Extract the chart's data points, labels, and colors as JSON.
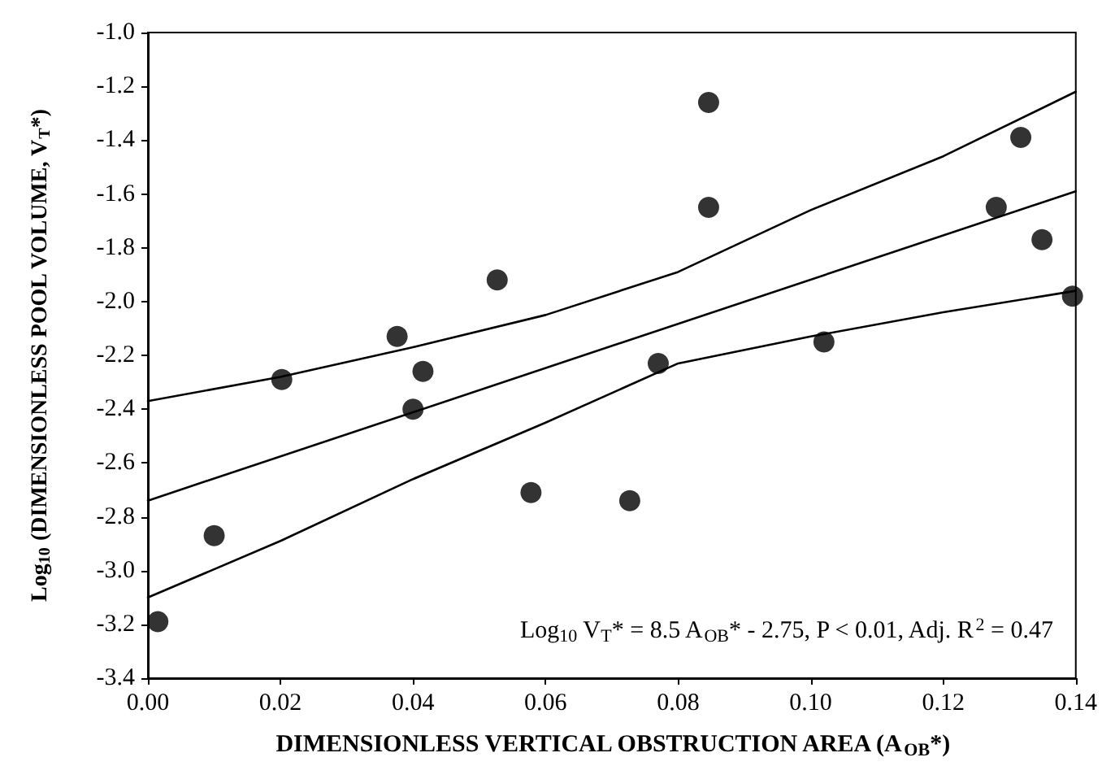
{
  "chart_data": {
    "type": "scatter",
    "xlabel": "DIMENSIONLESS VERTICAL OBSTRUCTION AREA (A$_{OB}$*)",
    "ylabel": "Log$_{10}$ (DIMENSIONLESS POOL VOLUME, V$_{T}$*)",
    "annotations": [
      "Log$_{10}$ V$_{T}$* = 8.5 A$_{OB}$* - 2.75, P < 0.01, Adj. R$^{2}$ = 0.47"
    ],
    "xlim": [
      0,
      0.14
    ],
    "xticks": [
      {
        "value": 0,
        "label": "0.00"
      },
      {
        "value": 0.02,
        "label": "0.02"
      },
      {
        "value": 0.04,
        "label": "0.04"
      },
      {
        "value": 0.06,
        "label": "0.06"
      },
      {
        "value": 0.08,
        "label": "0.08"
      },
      {
        "value": 0.1,
        "label": "0.10"
      },
      {
        "value": 0.12,
        "label": "0.12"
      },
      {
        "value": 0.14,
        "label": "0.14"
      }
    ],
    "ylim": [
      -3.4,
      -1.0
    ],
    "yticks": [
      {
        "value": -3.4,
        "label": "-3.4"
      },
      {
        "value": -3.2,
        "label": "-3.2"
      },
      {
        "value": -3.0,
        "label": "-3.0"
      },
      {
        "value": -2.8,
        "label": "-2.8"
      },
      {
        "value": -2.6,
        "label": "-2.6"
      },
      {
        "value": -2.4,
        "label": "-2.4"
      },
      {
        "value": -2.2,
        "label": "-2.2"
      },
      {
        "value": -2.0,
        "label": "-2.0"
      },
      {
        "value": -1.8,
        "label": "-1.8"
      },
      {
        "value": -1.6,
        "label": "-1.6"
      },
      {
        "value": -1.4,
        "label": "-1.4"
      },
      {
        "value": -1.2,
        "label": "-1.2"
      },
      {
        "value": -1.0,
        "label": "-1.0"
      }
    ],
    "grid": false,
    "series": [
      {
        "color": "#000000",
        "marker": "circle",
        "x": [
          0.0015,
          0.01,
          0.0202,
          0.0376,
          0.0415,
          0.04,
          0.0527,
          0.0578,
          0.0727,
          0.077,
          0.0846,
          0.0846,
          0.102,
          0.1317,
          0.128,
          0.1349,
          0.1395
        ],
        "values": [
          -3.19,
          -2.87,
          -2.29,
          -2.13,
          -2.26,
          -2.4,
          -1.92,
          -2.71,
          -2.74,
          -2.23,
          -1.26,
          -1.65,
          -2.15,
          -1.39,
          -1.65,
          -1.77,
          -1.98
        ]
      },
      {
        "type": "line",
        "color": "#000000",
        "marker": "none",
        "line_style": "solid",
        "x": [
          0,
          0.14
        ],
        "values": [
          -2.74,
          -1.59
        ]
      },
      {
        "type": "line",
        "color": "#000000",
        "marker": "none",
        "line_style": "solid",
        "x": [
          0,
          0.02,
          0.04,
          0.06,
          0.08,
          0.1,
          0.12,
          0.14
        ],
        "values": [
          -2.37,
          -2.28,
          -2.17,
          -2.05,
          -1.89,
          -1.66,
          -1.46,
          -1.22
        ]
      },
      {
        "type": "line",
        "color": "#000000",
        "marker": "none",
        "line_style": "solid",
        "x": [
          0,
          0.02,
          0.04,
          0.06,
          0.08,
          0.1,
          0.12,
          0.14
        ],
        "values": [
          -3.1,
          -2.89,
          -2.66,
          -2.45,
          -2.23,
          -2.13,
          -2.04,
          -1.96
        ]
      }
    ]
  }
}
